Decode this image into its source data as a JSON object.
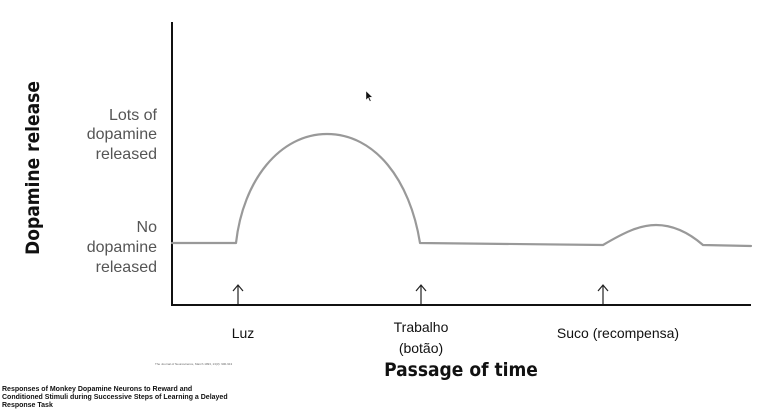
{
  "axes": {
    "y_label": "Dopamine release",
    "x_label": "Passage of time"
  },
  "y_levels": {
    "high": [
      "Lots of",
      "dopamine",
      "released"
    ],
    "none": [
      "No",
      "dopamine",
      "released"
    ]
  },
  "events": [
    {
      "label_lines": [
        "Luz"
      ]
    },
    {
      "label_lines": [
        "Trabalho",
        "(botão)"
      ]
    },
    {
      "label_lines": [
        "Suco (recompensa)"
      ]
    }
  ],
  "responses": [
    {
      "event": "Luz",
      "level": "high"
    },
    {
      "event": "Trabalho (botão)",
      "level": "none"
    },
    {
      "event": "Suco (recompensa)",
      "level": "small"
    }
  ],
  "citation": "The Journal of Neuroscience, March 1993, 13(3): 900-913",
  "source_caption": [
    "Responses of Monkey Dopamine Neurons to Reward and",
    "Conditioned Stimuli during Successive Steps of Learning a Delayed",
    "Response Task"
  ],
  "colors": {
    "curve": "#999999",
    "axis": "#111111",
    "text": "#111111"
  }
}
